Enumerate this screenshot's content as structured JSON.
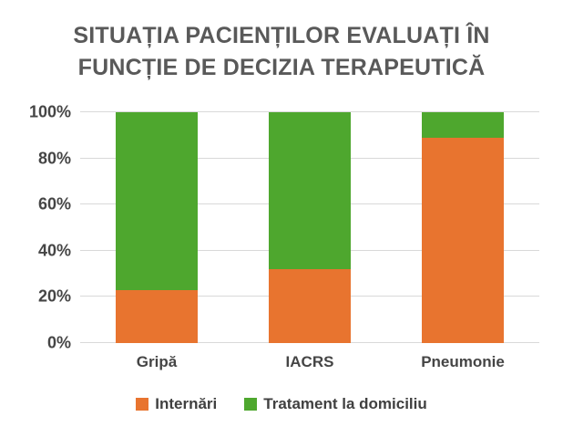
{
  "title_lines": [
    "SITUAȚIA PACIENȚILOR EVALUAȚI ÎN",
    "FUNCȚIE DE DECIZIA TERAPEUTICĂ"
  ],
  "colors": {
    "internari": "#E8742F",
    "tratament_la_domiciliu": "#4EA72E",
    "gridline": "#D9D9D9",
    "title_text": "#595959",
    "axis_text": "#454545",
    "background": "#FFFFFF"
  },
  "chart_data": {
    "type": "bar",
    "stacked": true,
    "unit": "%",
    "title": "SITUAȚIA PACIENȚILOR EVALUAȚI ÎN FUNCȚIE DE DECIZIA TERAPEUTICĂ",
    "categories": [
      "Gripă",
      "IACRS",
      "Pneumonie"
    ],
    "series": [
      {
        "name": "Internări",
        "color": "#E8742F",
        "values": [
          23,
          32,
          89
        ]
      },
      {
        "name": "Tratament la domiciliu",
        "color": "#4EA72E",
        "values": [
          77,
          68,
          11
        ]
      }
    ],
    "xlabel": "",
    "ylabel": "",
    "ylim": [
      0,
      100
    ],
    "yticks": [
      "0%",
      "20%",
      "40%",
      "60%",
      "80%",
      "100%"
    ],
    "grid": true,
    "legend_position": "bottom"
  }
}
